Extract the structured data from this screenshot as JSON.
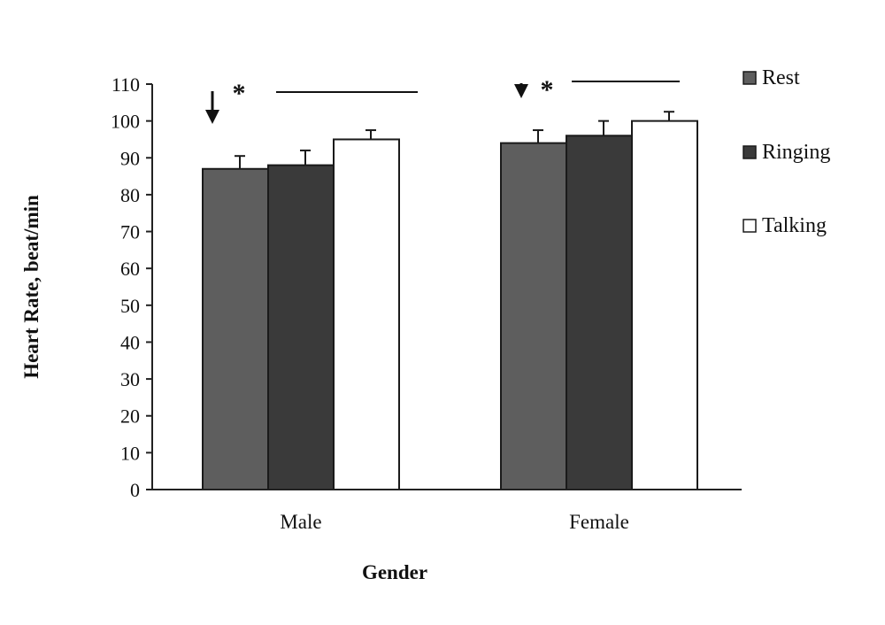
{
  "chart_data": {
    "type": "bar",
    "categories": [
      "Male",
      "Female"
    ],
    "series": [
      {
        "name": "Rest",
        "values": [
          87,
          94
        ],
        "errors": [
          3.5,
          3.5
        ],
        "color": "#5e5e5e"
      },
      {
        "name": "Ringing",
        "values": [
          88,
          96
        ],
        "errors": [
          4,
          4
        ],
        "color": "#3a3a3a"
      },
      {
        "name": "Talking",
        "values": [
          95,
          100
        ],
        "errors": [
          2.5,
          2.5
        ],
        "color": "#ffffff"
      }
    ],
    "xlabel": "Gender",
    "ylabel": "Heart Rate, beat/min",
    "ylim": [
      0,
      110
    ],
    "yticks": [
      0,
      10,
      20,
      30,
      40,
      50,
      60,
      70,
      80,
      90,
      100,
      110
    ],
    "grid": false,
    "legend_position": "right",
    "annotations": [
      {
        "category": "Male",
        "marker": "↓",
        "label": "*",
        "span_label": ""
      },
      {
        "category": "Female",
        "marker": "↓",
        "label": "*",
        "span_label": ""
      }
    ]
  }
}
